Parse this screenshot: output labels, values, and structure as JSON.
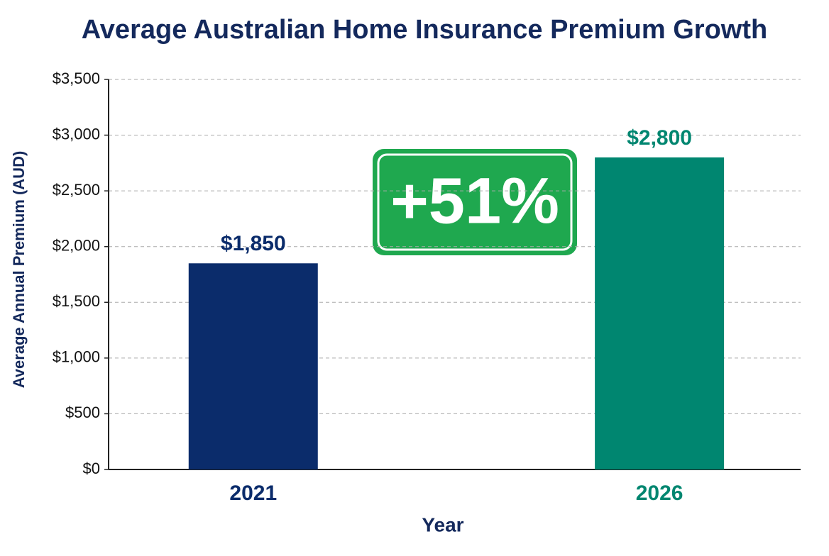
{
  "chart_data": {
    "type": "bar",
    "title": "Average Australian Home Insurance Premium Growth",
    "xlabel": "Year",
    "ylabel": "Average Annual Premium (AUD)",
    "categories": [
      "2021",
      "2026"
    ],
    "values": [
      1850,
      2800
    ],
    "value_labels": [
      "$1,850",
      "$2,800"
    ],
    "colors": [
      "#0b2c6b",
      "#008670"
    ],
    "ylim": [
      0,
      3500
    ],
    "yticks": [
      {
        "value": 0,
        "label": "$0"
      },
      {
        "value": 500,
        "label": "$500"
      },
      {
        "value": 1000,
        "label": "$1,000"
      },
      {
        "value": 1500,
        "label": "$1,500"
      },
      {
        "value": 2000,
        "label": "$2,000"
      },
      {
        "value": 2500,
        "label": "$2,500"
      },
      {
        "value": 3000,
        "label": "$3,000"
      },
      {
        "value": 3500,
        "label": "$3,500"
      }
    ],
    "grid": true,
    "annotation": "+51%"
  }
}
